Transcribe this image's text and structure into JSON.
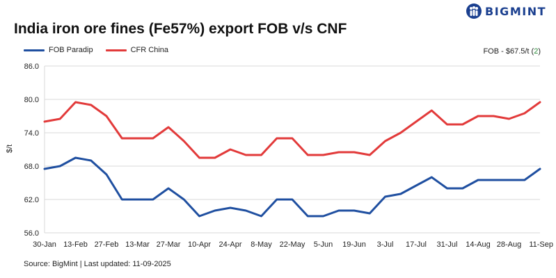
{
  "header": {
    "title": "India iron ore fines (Fe57%) export FOB v/s CNF",
    "brand": "BIGMINT"
  },
  "note": {
    "prefix": "FOB - $67.5/t (",
    "value": "2",
    "suffix": ")"
  },
  "footer": {
    "source": "Source: BigMint | Last updated: 11-09-2025"
  },
  "colors": {
    "fob": "#1f4fa0",
    "cfr": "#e23a3a",
    "brand": "#1a3f8f",
    "grid": "#d9d9d9"
  },
  "chart_data": {
    "type": "line",
    "title": "India iron ore fines (Fe57%) export FOB v/s CNF",
    "xlabel": "",
    "ylabel": "$/t",
    "ylim": [
      56,
      86
    ],
    "yticks": [
      "86.0",
      "80.0",
      "74.0",
      "68.0",
      "62.0",
      "56.0"
    ],
    "ytick_values": [
      86,
      80,
      74,
      68,
      62,
      56
    ],
    "grid": true,
    "legend_position": "top-left",
    "x_ticks": [
      "30-Jan",
      "13-Feb",
      "27-Feb",
      "13-Mar",
      "27-Mar",
      "10-Apr",
      "24-Apr",
      "8-May",
      "22-May",
      "5-Jun",
      "19-Jun",
      "3-Jul",
      "17-Jul",
      "31-Jul",
      "14-Aug",
      "28-Aug",
      "11-Sep"
    ],
    "series": [
      {
        "name": "FOB Paradip",
        "values": [
          67.5,
          68.0,
          69.5,
          69.0,
          66.5,
          62.0,
          62.0,
          62.0,
          64.0,
          62.0,
          59.0,
          60.0,
          60.5,
          60.0,
          59.0,
          62.0,
          62.0,
          59.0,
          59.0,
          60.0,
          60.0,
          59.5,
          62.5,
          63.0,
          64.5,
          66.0,
          64.0,
          64.0,
          65.5,
          65.5,
          65.5,
          65.5,
          67.5
        ]
      },
      {
        "name": "CFR China",
        "values": [
          76.0,
          76.5,
          79.5,
          79.0,
          77.0,
          73.0,
          73.0,
          73.0,
          75.0,
          72.5,
          69.5,
          69.5,
          71.0,
          70.0,
          70.0,
          73.0,
          73.0,
          70.0,
          70.0,
          70.5,
          70.5,
          70.0,
          72.5,
          74.0,
          76.0,
          78.0,
          75.5,
          75.5,
          77.0,
          77.0,
          76.5,
          77.5,
          79.5
        ]
      }
    ]
  }
}
